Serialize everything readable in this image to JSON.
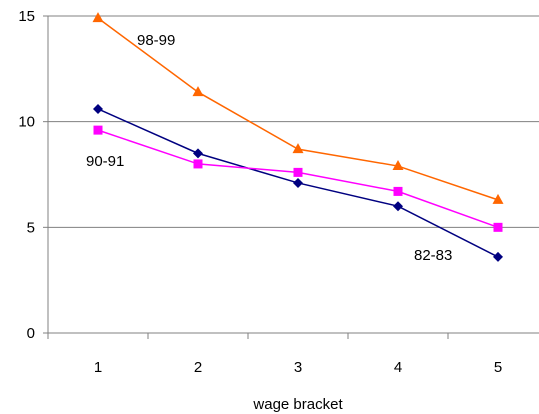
{
  "chart_data": {
    "type": "line",
    "xlabel": "wage bracket",
    "ylabel": "",
    "title": "",
    "x": [
      1,
      2,
      3,
      4,
      5
    ],
    "ylim": [
      0,
      15
    ],
    "yticks": [
      0,
      5,
      10,
      15
    ],
    "grid": true,
    "series": [
      {
        "name": "82-83",
        "color": "#000080",
        "marker": "diamond",
        "values": [
          10.6,
          8.5,
          7.1,
          6.0,
          3.6
        ]
      },
      {
        "name": "90-91",
        "color": "#ff00ff",
        "marker": "square",
        "values": [
          9.6,
          8.0,
          7.6,
          6.7,
          5.0
        ]
      },
      {
        "name": "98-99",
        "color": "#ff6600",
        "marker": "triangle",
        "values": [
          14.9,
          11.4,
          8.7,
          7.9,
          6.3
        ]
      }
    ],
    "annotations": [
      {
        "text": "98-99"
      },
      {
        "text": "90-91"
      },
      {
        "text": "82-83"
      }
    ]
  }
}
